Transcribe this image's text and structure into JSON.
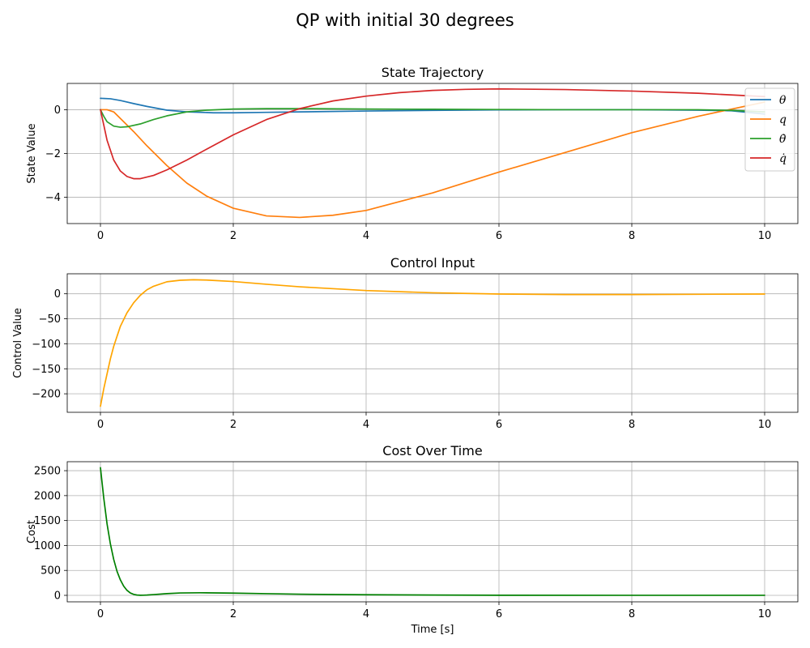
{
  "figure": {
    "suptitle": "QP with initial 30 degrees"
  },
  "chart_data": [
    {
      "type": "line",
      "title": "State Trajectory",
      "xlabel": "",
      "ylabel": "State Value",
      "xlim": [
        -0.5,
        10.5
      ],
      "ylim": [
        -5.2,
        1.2
      ],
      "xticks": [
        0,
        2,
        4,
        6,
        8,
        10
      ],
      "yticks": [
        -4,
        -2,
        0
      ],
      "grid": true,
      "legend": "top-right",
      "series": [
        {
          "name": "θ",
          "color": "#1f77b4",
          "x": [
            0,
            0.15,
            0.3,
            0.5,
            0.7,
            1.0,
            1.3,
            1.7,
            2.0,
            2.5,
            3.0,
            4.0,
            5.0,
            6.0,
            7.0,
            8.0,
            9.0,
            9.5,
            10.0
          ],
          "y": [
            0.52,
            0.5,
            0.42,
            0.28,
            0.15,
            -0.02,
            -0.1,
            -0.14,
            -0.14,
            -0.12,
            -0.1,
            -0.06,
            -0.03,
            -0.01,
            0.0,
            0.0,
            -0.02,
            -0.05,
            -0.2
          ]
        },
        {
          "name": "q",
          "color": "#ff7f0e",
          "x": [
            0,
            0.1,
            0.2,
            0.3,
            0.5,
            0.7,
            1.0,
            1.3,
            1.6,
            2.0,
            2.5,
            3.0,
            3.5,
            4.0,
            5.0,
            6.0,
            7.0,
            8.0,
            9.0,
            10.0
          ],
          "y": [
            0.0,
            0.0,
            -0.1,
            -0.4,
            -1.0,
            -1.65,
            -2.55,
            -3.35,
            -3.95,
            -4.5,
            -4.85,
            -4.92,
            -4.82,
            -4.6,
            -3.8,
            -2.85,
            -1.95,
            -1.05,
            -0.3,
            0.35
          ]
        },
        {
          "name": "θ̇",
          "color": "#2ca02c",
          "x": [
            0,
            0.05,
            0.1,
            0.2,
            0.3,
            0.4,
            0.6,
            0.8,
            1.0,
            1.3,
            1.6,
            2.0,
            2.5,
            3.0,
            4.0,
            5.0,
            6.0,
            7.0,
            8.0,
            9.0,
            9.5,
            10.0
          ],
          "y": [
            0.0,
            -0.3,
            -0.55,
            -0.75,
            -0.8,
            -0.78,
            -0.65,
            -0.45,
            -0.28,
            -0.1,
            -0.02,
            0.03,
            0.05,
            0.05,
            0.03,
            0.02,
            0.01,
            0.0,
            0.0,
            0.0,
            -0.03,
            -0.1
          ]
        },
        {
          "name": "q̇",
          "color": "#d62728",
          "x": [
            0,
            0.05,
            0.1,
            0.2,
            0.3,
            0.4,
            0.5,
            0.6,
            0.8,
            1.0,
            1.3,
            1.6,
            2.0,
            2.5,
            3.0,
            3.5,
            4.0,
            4.5,
            5.0,
            5.5,
            6.0,
            7.0,
            8.0,
            9.0,
            10.0
          ],
          "y": [
            0.0,
            -0.7,
            -1.4,
            -2.3,
            -2.8,
            -3.05,
            -3.15,
            -3.15,
            -3.0,
            -2.75,
            -2.3,
            -1.8,
            -1.15,
            -0.45,
            0.05,
            0.4,
            0.62,
            0.78,
            0.88,
            0.93,
            0.95,
            0.92,
            0.85,
            0.75,
            0.6
          ]
        }
      ]
    },
    {
      "type": "line",
      "title": "Control Input",
      "xlabel": "",
      "ylabel": "Control Value",
      "xlim": [
        -0.5,
        10.5
      ],
      "ylim": [
        -237,
        40
      ],
      "xticks": [
        0,
        2,
        4,
        6,
        8,
        10
      ],
      "yticks": [
        -200,
        -150,
        -100,
        -50,
        0
      ],
      "grid": true,
      "series": [
        {
          "name": "",
          "color": "#ffa500",
          "x": [
            0,
            0.05,
            0.1,
            0.15,
            0.2,
            0.3,
            0.4,
            0.5,
            0.6,
            0.7,
            0.8,
            1.0,
            1.2,
            1.4,
            1.6,
            2.0,
            2.5,
            3.0,
            4.0,
            5.0,
            6.0,
            7.0,
            8.0,
            9.0,
            10.0
          ],
          "y": [
            -225,
            -190,
            -160,
            -130,
            -105,
            -65,
            -38,
            -18,
            -3,
            8,
            15,
            24,
            27,
            28,
            27.5,
            24.5,
            19,
            14,
            6.5,
            2,
            -0.5,
            -1.5,
            -1.5,
            -1,
            -0.5
          ]
        }
      ]
    },
    {
      "type": "line",
      "title": "Cost Over Time",
      "xlabel": "Time [s]",
      "ylabel": "Cost",
      "xlim": [
        -0.5,
        10.5
      ],
      "ylim": [
        -130,
        2680
      ],
      "xticks": [
        0,
        2,
        4,
        6,
        8,
        10
      ],
      "yticks": [
        0,
        500,
        1000,
        1500,
        2000,
        2500
      ],
      "grid": true,
      "series": [
        {
          "name": "",
          "color": "#008000",
          "x": [
            0,
            0.05,
            0.1,
            0.15,
            0.2,
            0.25,
            0.3,
            0.35,
            0.4,
            0.45,
            0.5,
            0.55,
            0.6,
            0.65,
            0.7,
            0.8,
            1.0,
            1.2,
            1.5,
            2.0,
            2.5,
            3.0,
            4.0,
            5.0,
            6.0,
            8.0,
            10.0
          ],
          "y": [
            2560,
            1950,
            1430,
            1030,
            720,
            480,
            310,
            185,
            100,
            48,
            20,
            6,
            2,
            3,
            6,
            15,
            35,
            48,
            52,
            45,
            33,
            23,
            12,
            6,
            2,
            1,
            1
          ]
        }
      ]
    }
  ]
}
